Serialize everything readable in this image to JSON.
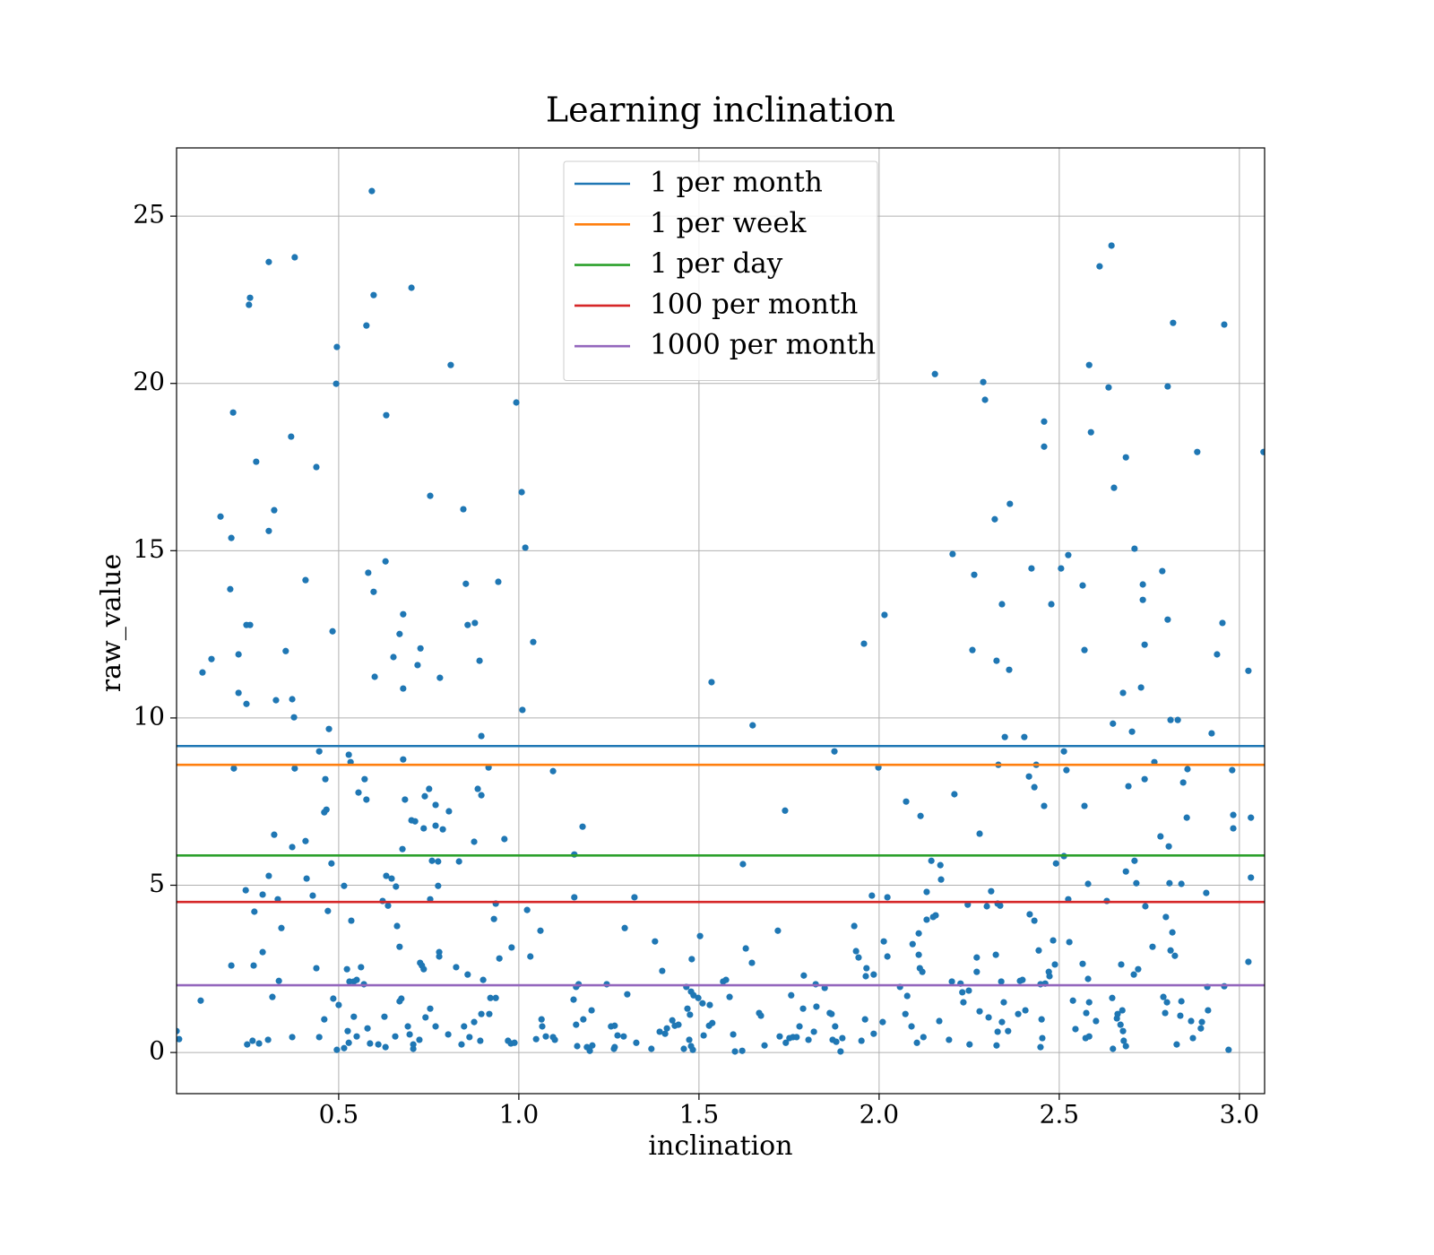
{
  "chart_data": {
    "type": "scatter",
    "title": "Learning inclination",
    "xlabel": "inclination",
    "ylabel": "raw_value",
    "color": "#1f77b4",
    "grid": true,
    "legend": "upper center",
    "xlim": [
      0.05,
      3.07
    ],
    "ylim": [
      -1.23,
      27.04
    ],
    "xticks": [
      0.5,
      {
        "value": 1,
        "label": "1.0"
      },
      1.5,
      {
        "value": 2,
        "label": "2.0"
      },
      2.5,
      {
        "value": 3,
        "label": "3.0"
      }
    ],
    "yticks": [
      0,
      5,
      10,
      15,
      20,
      25
    ],
    "lines": [
      {
        "name": "1 per month",
        "color": "#1f77b4",
        "value": 9.16
      },
      {
        "name": "1 per week",
        "color": "#ff7f0e",
        "value": 8.6
      },
      {
        "name": "1 per day",
        "color": "#2ca02c",
        "value": 5.89
      },
      {
        "name": "100 per month",
        "color": "#d62728",
        "value": 4.5
      },
      {
        "name": "1000 per month",
        "color": "#9467bd",
        "value": 2.01
      }
    ],
    "x": [
      0.592,
      0.378,
      0.306,
      0.254,
      0.251,
      0.702,
      0.597,
      0.577,
      0.495,
      0.811,
      0.493,
      0.632,
      0.993,
      0.207,
      0.368,
      0.271,
      0.438,
      0.172,
      0.754,
      0.846,
      1.008,
      0.321,
      0.306,
      0.202,
      1.018,
      0.582,
      0.63,
      0.408,
      0.943,
      0.853,
      0.199,
      0.597,
      0.679,
      0.244,
      0.254,
      0.878,
      0.858,
      0.483,
      0.669,
      1.04,
      0.727,
      0.353,
      0.652,
      0.222,
      0.147,
      0.891,
      0.719,
      0.122,
      0.6,
      0.781,
      0.679,
      0.222,
      0.326,
      0.371,
      0.244,
      1.01,
      0.376,
      0.473,
      0.896,
      0.446,
      0.679,
      0.528,
      0.533,
      0.209,
      0.378,
      0.916,
      1.095,
      0.572,
      0.463,
      0.751,
      0.886,
      0.555,
      0.896,
      0.684,
      0.739,
      0.577,
      0.769,
      0.806,
      0.466,
      0.46,
      0.702,
      0.712,
      0.769,
      0.736,
      0.789,
      1.177,
      0.321,
      0.408,
      0.96,
      0.876,
      0.371,
      0.677,
      1.154,
      0.759,
      0.48,
      0.776,
      0.834,
      0.632,
      0.306,
      0.411,
      0.647,
      0.515,
      0.659,
      0.776,
      0.242,
      0.289,
      0.428,
      0.754,
      0.331,
      1.154,
      1.321,
      0.622,
      0.637,
      0.936,
      1.023,
      0.47,
      0.266,
      0.931,
      0.535,
      0.662,
      0.341,
      1.06,
      1.294,
      1.378,
      0.669,
      0.98,
      0.289,
      0.779,
      0.779,
      0.946,
      1.032,
      0.731,
      0.726,
      0.202,
      0.264,
      0.562,
      0.438,
      0.826,
      0.523,
      0.736,
      1.398,
      0.858,
      0.53,
      0.542,
      0.55,
      0.334,
      0.901,
      0.57,
      1.166,
      1.159,
      1.244,
      0.316,
      0.117,
      0.485,
      0.921,
      0.936,
      1.301,
      0.674,
      0.669,
      0.5,
      0.754,
      0.741,
      1.152,
      1.202,
      0.46,
      0.542,
      0.627,
      0.876,
      0.896,
      0.918,
      1.063,
      1.065,
      1.179,
      1.159,
      1.256,
      1.266,
      0.848,
      0.769,
      0.692,
      0.58,
      0.525,
      0.05,
      0.057,
      0.246,
      0.261,
      0.279,
      0.304,
      0.371,
      0.446,
      0.495,
      0.515,
      0.528,
      0.55,
      0.587,
      0.61,
      0.63,
      0.657,
      0.697,
      0.707,
      0.707,
      0.724,
      0.804,
      0.841,
      0.863,
      0.893,
      0.97,
      0.978,
      0.988,
      1.048,
      1.075,
      1.095,
      1.1,
      1.162,
      1.189,
      1.197,
      1.204,
      1.264,
      1.266,
      1.274,
      1.291,
      1.326,
      1.368,
      1.391,
      1.406,
      1.426,
      1.433,
      1.443,
      1.411,
      1.468,
      1.475,
      1.465,
      1.478,
      1.48,
      1.485,
      1.498,
      1.51,
      1.503,
      1.458,
      1.478,
      1.483,
      1.473,
      1.513,
      1.537,
      1.528,
      1.53,
      1.535,
      1.567,
      1.575,
      1.585,
      1.595,
      1.6,
      1.62,
      1.622,
      1.63,
      1.647,
      1.649,
      1.667,
      1.672,
      1.682,
      1.719,
      1.739,
      1.724,
      1.741,
      1.756,
      1.751,
      1.761,
      1.771,
      1.779,
      1.791,
      1.789,
      1.804,
      1.819,
      1.824,
      1.826,
      1.849,
      1.863,
      1.868,
      1.871,
      1.881,
      1.876,
      1.878,
      1.893,
      1.898,
      1.931,
      1.936,
      1.943,
      1.951,
      1.958,
      1.961,
      1.963,
      1.965,
      1.985,
      1.985,
      1.98,
      1.998,
      2.015,
      2.013,
      2.023,
      2.01,
      2.023,
      2.058,
      2.075,
      2.073,
      2.078,
      2.09,
      2.093,
      2.105,
      2.11,
      2.115,
      2.113,
      2.11,
      2.12,
      2.123,
      2.132,
      2.132,
      2.145,
      2.15,
      2.157,
      2.155,
      2.17,
      2.172,
      2.167,
      2.194,
      2.202,
      2.204,
      2.209,
      2.226,
      2.231,
      2.234,
      2.246,
      2.249,
      2.251,
      2.259,
      2.264,
      2.271,
      2.271,
      2.279,
      2.279,
      2.289,
      2.294,
      2.299,
      2.304,
      2.311,
      2.324,
      2.321,
      2.326,
      2.326,
      2.329,
      2.331,
      2.329,
      2.336,
      2.341,
      2.339,
      2.341,
      2.346,
      2.349,
      2.358,
      2.361,
      2.363,
      2.386,
      2.391,
      2.398,
      2.403,
      2.406,
      2.416,
      2.418,
      2.423,
      2.431,
      2.431,
      2.436,
      2.443,
      2.448,
      2.448,
      2.451,
      2.453,
      2.458,
      2.458,
      2.461,
      2.458,
      2.471,
      2.473,
      2.478,
      2.483,
      2.488,
      2.491,
      2.505,
      2.513,
      2.513,
      2.52,
      2.525,
      2.525,
      2.528,
      2.538,
      2.545,
      2.565,
      2.565,
      2.57,
      2.57,
      2.573,
      2.575,
      2.58,
      2.58,
      2.583,
      2.583,
      2.588,
      2.583,
      2.602,
      2.612,
      2.632,
      2.637,
      2.645,
      2.647,
      2.649,
      2.649,
      2.652,
      2.66,
      2.662,
      2.67,
      2.672,
      2.675,
      2.677,
      2.677,
      2.679,
      2.685,
      2.685,
      2.685,
      2.692,
      2.702,
      2.707,
      2.709,
      2.709,
      2.714,
      2.719,
      2.727,
      2.732,
      2.732,
      2.737,
      2.737,
      2.739,
      2.759,
      2.764,
      2.781,
      2.786,
      2.789,
      2.794,
      2.796,
      2.799,
      2.801,
      2.801,
      2.804,
      2.806,
      2.809,
      2.809,
      2.816,
      2.814,
      2.821,
      2.826,
      2.829,
      2.836,
      2.839,
      2.839,
      2.844,
      2.854,
      2.856,
      2.866,
      2.871,
      2.883,
      2.893,
      2.896,
      2.908,
      2.911,
      2.913,
      2.923,
      2.938,
      2.953,
      2.958,
      2.958,
      2.97,
      2.98,
      2.983,
      2.983,
      3.025,
      3.025,
      3.032,
      3.032,
      3.067
    ],
    "y": [
      25.75,
      23.77,
      23.63,
      22.56,
      22.35,
      22.86,
      22.64,
      21.73,
      21.09,
      20.55,
      19.99,
      19.05,
      19.43,
      19.13,
      18.41,
      17.66,
      17.5,
      16.02,
      16.64,
      16.24,
      16.75,
      16.21,
      15.59,
      15.38,
      15.09,
      14.34,
      14.68,
      14.12,
      14.07,
      14.01,
      13.85,
      13.77,
      13.1,
      12.78,
      12.78,
      12.84,
      12.78,
      12.59,
      12.51,
      12.27,
      12.08,
      12.0,
      11.82,
      11.9,
      11.76,
      11.71,
      11.58,
      11.36,
      11.23,
      11.2,
      10.88,
      10.75,
      10.53,
      10.56,
      10.42,
      10.24,
      10.02,
      9.67,
      9.46,
      9.0,
      8.76,
      8.9,
      8.68,
      8.49,
      8.49,
      8.52,
      8.41,
      8.17,
      8.17,
      7.88,
      7.88,
      7.77,
      7.69,
      7.56,
      7.66,
      7.56,
      7.4,
      7.21,
      7.26,
      7.18,
      6.94,
      6.91,
      6.78,
      6.7,
      6.67,
      6.75,
      6.51,
      6.32,
      6.38,
      6.3,
      6.14,
      6.08,
      5.92,
      5.73,
      5.65,
      5.71,
      5.71,
      5.28,
      5.28,
      5.2,
      5.2,
      4.98,
      4.96,
      4.98,
      4.85,
      4.72,
      4.69,
      4.58,
      4.58,
      4.64,
      4.64,
      4.53,
      4.39,
      4.45,
      4.26,
      4.23,
      4.21,
      3.99,
      3.94,
      3.78,
      3.72,
      3.64,
      3.72,
      3.32,
      3.16,
      3.14,
      3.0,
      3.0,
      2.87,
      2.81,
      2.87,
      2.6,
      2.68,
      2.6,
      2.6,
      2.55,
      2.52,
      2.55,
      2.49,
      2.49,
      2.44,
      2.33,
      2.12,
      2.12,
      2.17,
      2.14,
      2.17,
      2.04,
      2.04,
      1.96,
      2.04,
      1.66,
      1.55,
      1.61,
      1.63,
      1.63,
      1.74,
      1.61,
      1.53,
      1.42,
      1.31,
      1.05,
      1.58,
      1.26,
      0.99,
      1.07,
      1.07,
      0.91,
      1.15,
      1.15,
      0.99,
      0.78,
      0.99,
      0.83,
      0.78,
      0.8,
      0.78,
      0.78,
      0.78,
      0.72,
      0.64,
      0.64,
      0.4,
      0.24,
      0.35,
      0.27,
      0.38,
      0.46,
      0.46,
      0.08,
      0.13,
      0.29,
      0.48,
      0.27,
      0.24,
      0.16,
      0.48,
      0.54,
      0.24,
      0.11,
      0.38,
      0.54,
      0.24,
      0.46,
      0.35,
      0.35,
      0.27,
      0.29,
      0.4,
      0.48,
      0.46,
      0.38,
      0.19,
      0.16,
      0.05,
      0.21,
      0.11,
      0.16,
      0.51,
      0.48,
      0.29,
      0.11,
      0.62,
      0.56,
      0.96,
      0.8,
      0.83,
      0.72,
      1.31,
      1.13,
      1.96,
      1.82,
      2.79,
      1.71,
      1.63,
      1.47,
      3.48,
      0.11,
      0.19,
      0.08,
      0.38,
      0.51,
      0.88,
      0.8,
      1.42,
      11.07,
      2.12,
      2.17,
      1.66,
      0.54,
      0.03,
      0.05,
      5.63,
      3.11,
      2.68,
      9.78,
      1.18,
      1.1,
      0.21,
      3.64,
      7.23,
      0.48,
      0.29,
      1.71,
      0.43,
      0.46,
      0.46,
      0.78,
      2.3,
      1.31,
      0.38,
      0.62,
      2.04,
      1.37,
      1.93,
      1.18,
      1.15,
      0.38,
      0.32,
      9.0,
      0.78,
      0.03,
      0.43,
      3.78,
      3.03,
      2.84,
      0.35,
      12.22,
      0.99,
      2.28,
      2.52,
      2.33,
      0.56,
      4.69,
      8.52,
      13.08,
      3.32,
      4.64,
      0.91,
      2.87,
      1.96,
      7.5,
      1.15,
      1.69,
      0.78,
      3.24,
      0.29,
      3.56,
      7.07,
      2.52,
      2.92,
      2.41,
      0.46,
      4.8,
      3.97,
      5.73,
      4.05,
      4.1,
      20.28,
      5.6,
      5.17,
      0.94,
      0.38,
      2.12,
      14.9,
      7.72,
      2.06,
      1.8,
      1.5,
      4.42,
      1.85,
      0.24,
      12.03,
      14.28,
      2.41,
      2.84,
      1.23,
      6.54,
      20.04,
      19.51,
      4.37,
      1.05,
      4.82,
      2.92,
      15.94,
      11.71,
      0.21,
      0.62,
      8.6,
      4.45,
      4.39,
      13.4,
      2.12,
      0.91,
      1.5,
      9.43,
      0.64,
      11.44,
      16.4,
      1.15,
      2.14,
      2.17,
      9.43,
      1.26,
      8.25,
      4.13,
      14.47,
      3.94,
      7.93,
      8.6,
      3.05,
      2.04,
      0.16,
      0.99,
      0.43,
      7.37,
      18.86,
      2.06,
      18.11,
      2.41,
      2.28,
      13.4,
      3.35,
      2.63,
      5.65,
      14.47,
      5.87,
      9.0,
      8.44,
      14.87,
      4.58,
      3.3,
      1.55,
      0.7,
      2.65,
      13.96,
      7.37,
      12.03,
      0.43,
      1.18,
      5.04,
      2.2,
      0.48,
      20.55,
      18.54,
      1.5,
      0.94,
      23.5,
      4.53,
      19.88,
      24.12,
      1.63,
      9.83,
      0.11,
      16.88,
      1.02,
      1.15,
      0.83,
      2.63,
      1.26,
      10.75,
      0.64,
      0.35,
      17.79,
      5.41,
      0.19,
      7.96,
      9.59,
      2.33,
      15.06,
      5.73,
      5.06,
      2.49,
      10.91,
      13.99,
      13.53,
      8.17,
      12.19,
      4.37,
      3.16,
      8.68,
      6.46,
      14.39,
      1.66,
      1.18,
      4.05,
      1.5,
      12.94,
      19.91,
      6.16,
      5.06,
      9.94,
      3.05,
      21.81,
      3.59,
      2.89,
      0.24,
      9.94,
      1.1,
      1.53,
      5.04,
      8.07,
      7.02,
      8.47,
      0.94,
      0.43,
      17.95,
      0.72,
      0.91,
      4.77,
      1.96,
      1.26,
      9.54,
      11.9,
      12.84,
      21.76,
      1.98,
      0.08,
      8.44,
      7.1,
      6.7,
      11.41,
      2.71,
      7.02,
      5.23,
      17.95
    ]
  }
}
